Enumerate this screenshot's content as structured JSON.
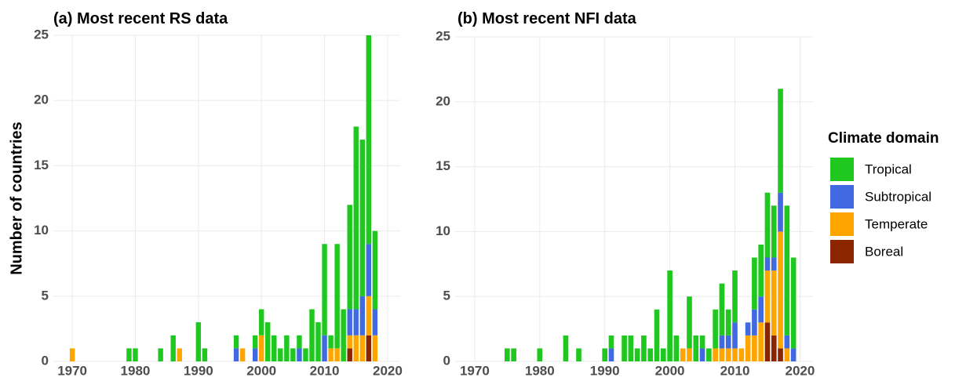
{
  "chart_data": [
    {
      "type": "bar",
      "stacked": true,
      "title": "(a) Most recent RS data",
      "ylabel": "Number of countries",
      "x": [
        1970,
        1979,
        1980,
        1984,
        1986,
        1987,
        1990,
        1991,
        1996,
        1997,
        1999,
        2000,
        2001,
        2002,
        2003,
        2004,
        2005,
        2006,
        2007,
        2008,
        2009,
        2010,
        2011,
        2012,
        2013,
        2014,
        2015,
        2016,
        2017,
        2018
      ],
      "series": [
        {
          "name": "Tropical",
          "color": "#1fc81f",
          "values": [
            0,
            1,
            1,
            1,
            2,
            0,
            3,
            1,
            1,
            0,
            1,
            2,
            3,
            2,
            1,
            2,
            1,
            1,
            1,
            4,
            3,
            7,
            1,
            8,
            4,
            8,
            14,
            12,
            16,
            6
          ]
        },
        {
          "name": "Subtropical",
          "color": "#4169e1",
          "values": [
            0,
            0,
            0,
            0,
            0,
            0,
            0,
            0,
            1,
            0,
            1,
            0,
            0,
            0,
            0,
            0,
            0,
            1,
            0,
            0,
            0,
            2,
            0,
            0,
            0,
            2,
            2,
            3,
            4,
            2
          ]
        },
        {
          "name": "Temperate",
          "color": "#ffa500",
          "values": [
            1,
            0,
            0,
            0,
            0,
            1,
            0,
            0,
            0,
            1,
            0,
            2,
            0,
            0,
            0,
            0,
            0,
            0,
            0,
            0,
            0,
            0,
            1,
            1,
            0,
            1,
            2,
            2,
            3,
            2
          ]
        },
        {
          "name": "Boreal",
          "color": "#8b2500",
          "values": [
            0,
            0,
            0,
            0,
            0,
            0,
            0,
            0,
            0,
            0,
            0,
            0,
            0,
            0,
            0,
            0,
            0,
            0,
            0,
            0,
            0,
            0,
            0,
            0,
            0,
            1,
            0,
            0,
            2,
            0
          ]
        }
      ],
      "xlim": [
        1967,
        2022
      ],
      "xticks": [
        1970,
        1980,
        1990,
        2000,
        2010,
        2020
      ],
      "ylim": [
        0,
        25
      ],
      "yticks": [
        0,
        5,
        10,
        15,
        20,
        25
      ],
      "grid": true
    },
    {
      "type": "bar",
      "stacked": true,
      "title": "(b) Most recent NFI data",
      "legend_title": "Climate domain",
      "legend": "right",
      "x": [
        1975,
        1976,
        1980,
        1984,
        1986,
        1990,
        1991,
        1993,
        1994,
        1995,
        1996,
        1997,
        1998,
        1999,
        2000,
        2001,
        2002,
        2003,
        2004,
        2005,
        2006,
        2007,
        2008,
        2009,
        2010,
        2011,
        2012,
        2013,
        2014,
        2015,
        2016,
        2017,
        2018,
        2019
      ],
      "series": [
        {
          "name": "Tropical",
          "color": "#1fc81f",
          "values": [
            1,
            1,
            1,
            2,
            1,
            1,
            1,
            2,
            2,
            1,
            2,
            1,
            4,
            1,
            7,
            2,
            0,
            4,
            2,
            1,
            1,
            3,
            4,
            2,
            4,
            0,
            0,
            4,
            4,
            5,
            4,
            8,
            10,
            7
          ]
        },
        {
          "name": "Subtropical",
          "color": "#4169e1",
          "values": [
            0,
            0,
            0,
            0,
            0,
            0,
            1,
            0,
            0,
            0,
            0,
            0,
            0,
            0,
            0,
            0,
            0,
            0,
            0,
            1,
            0,
            0,
            1,
            1,
            2,
            0,
            1,
            2,
            2,
            1,
            1,
            3,
            1,
            1
          ]
        },
        {
          "name": "Temperate",
          "color": "#ffa500",
          "values": [
            0,
            0,
            0,
            0,
            0,
            0,
            0,
            0,
            0,
            0,
            0,
            0,
            0,
            0,
            0,
            0,
            1,
            1,
            0,
            0,
            0,
            1,
            1,
            1,
            1,
            1,
            2,
            2,
            3,
            4,
            5,
            9,
            1,
            0
          ]
        },
        {
          "name": "Boreal",
          "color": "#8b2500",
          "values": [
            0,
            0,
            0,
            0,
            0,
            0,
            0,
            0,
            0,
            0,
            0,
            0,
            0,
            0,
            0,
            0,
            0,
            0,
            0,
            0,
            0,
            0,
            0,
            0,
            0,
            0,
            0,
            0,
            0,
            3,
            2,
            1,
            0,
            0
          ]
        }
      ],
      "xlim": [
        1967,
        2022
      ],
      "xticks": [
        1970,
        1980,
        1990,
        2000,
        2010,
        2020
      ],
      "ylim": [
        0,
        25
      ],
      "yticks": [
        0,
        5,
        10,
        15,
        20,
        25
      ],
      "grid": true
    }
  ]
}
